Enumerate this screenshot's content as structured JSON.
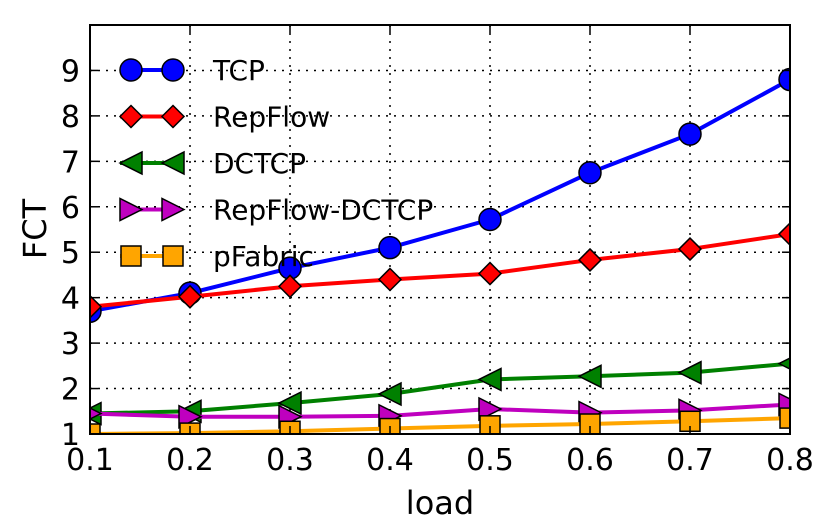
{
  "chart_data": {
    "type": "line",
    "title": "",
    "xlabel": "load",
    "ylabel": "FCT",
    "x": [
      0.1,
      0.2,
      0.3,
      0.4,
      0.5,
      0.6,
      0.7,
      0.8
    ],
    "xlim": [
      0.1,
      0.8
    ],
    "ylim": [
      1,
      10
    ],
    "xticks": [
      "0.1",
      "0.2",
      "0.3",
      "0.4",
      "0.5",
      "0.6",
      "0.7",
      "0.8"
    ],
    "yticks": [
      "1",
      "2",
      "3",
      "4",
      "5",
      "6",
      "7",
      "8",
      "9"
    ],
    "grid": true,
    "legend_position": "top-left",
    "series": [
      {
        "name": "TCP",
        "color": "#0000ff",
        "marker": "circle",
        "values": [
          3.7,
          4.1,
          4.65,
          5.1,
          5.72,
          6.75,
          7.6,
          8.8
        ]
      },
      {
        "name": "RepFlow",
        "color": "#ff0000",
        "marker": "diamond",
        "values": [
          3.8,
          4.02,
          4.25,
          4.4,
          4.53,
          4.83,
          5.07,
          5.4
        ]
      },
      {
        "name": "DCTCP",
        "color": "#008000",
        "marker": "triangle-left",
        "values": [
          1.45,
          1.5,
          1.68,
          1.88,
          2.2,
          2.27,
          2.35,
          2.55
        ]
      },
      {
        "name": "RepFlow-DCTCP",
        "color": "#bf00bf",
        "marker": "triangle-right",
        "values": [
          1.45,
          1.38,
          1.38,
          1.4,
          1.55,
          1.47,
          1.52,
          1.65
        ]
      },
      {
        "name": "pFabric",
        "color": "#ffa500",
        "marker": "square",
        "values": [
          1.0,
          1.02,
          1.06,
          1.12,
          1.18,
          1.22,
          1.28,
          1.35
        ]
      }
    ]
  }
}
